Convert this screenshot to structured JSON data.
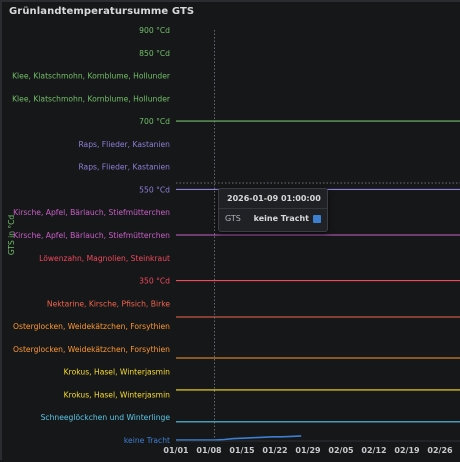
{
  "panel": {
    "title": "Grünlandtemperatursumme GTS"
  },
  "tooltip": {
    "time": "2026-01-09 01:00:00",
    "series": "GTS",
    "value": "keine Tracht",
    "swatch_color": "#3d7fd1"
  },
  "chart_data": {
    "type": "line",
    "title": "Grünlandtemperatursumme GTS",
    "ylabel": "GTS in °Cd",
    "xlabel": "",
    "x_ticks": [
      "01/01",
      "01/08",
      "01/15",
      "01/22",
      "01/29",
      "02/05",
      "02/12",
      "02/19",
      "02/26"
    ],
    "y_tick_labels": [
      {
        "label": "900 °Cd",
        "color": "#73bf69"
      },
      {
        "label": "850 °Cd",
        "color": "#73bf69"
      },
      {
        "label": "Klee, Klatschmohn, Kornblume, Hollunder",
        "color": "#73bf69"
      },
      {
        "label": "Klee, Klatschmohn, Kornblume, Hollunder",
        "color": "#73bf69"
      },
      {
        "label": "700 °Cd",
        "color": "#73bf69"
      },
      {
        "label": "Raps, Flieder, Kastanien",
        "color": "#8f7fd9"
      },
      {
        "label": "Raps, Flieder, Kastanien",
        "color": "#8f7fd9"
      },
      {
        "label": "550 °Cd",
        "color": "#8f7fd9"
      },
      {
        "label": "Kirsche, Apfel, Bärlauch, Stiefmütterchen",
        "color": "#c95fc7"
      },
      {
        "label": "Kirsche, Apfel, Bärlauch, Stiefmütterchen",
        "color": "#c95fc7"
      },
      {
        "label": "Löwenzahn, Magnolien, Steinkraut",
        "color": "#f2495c"
      },
      {
        "label": "350 °Cd",
        "color": "#f2495c"
      },
      {
        "label": "Nektarine, Kirsche, Pfisich, Birke",
        "color": "#f2644c"
      },
      {
        "label": "Osterglocken, Weidekätzchen, Forsythien",
        "color": "#ff9830"
      },
      {
        "label": "Osterglocken, Weidekätzchen, Forsythien",
        "color": "#ff9830"
      },
      {
        "label": "Krokus, Hasel, Winterjasmin",
        "color": "#fade2a"
      },
      {
        "label": "Krokus, Hasel, Winterjasmin",
        "color": "#fade2a"
      },
      {
        "label": "Schneeglöckchen und Winterlinge",
        "color": "#5ac8e8"
      },
      {
        "label": "keine Tracht",
        "color": "#3d7fd1"
      }
    ],
    "threshold_lines": [
      {
        "value": 700,
        "color": "#73bf69"
      },
      {
        "value": 550,
        "color": "#8f7fd9"
      },
      {
        "value": 450,
        "color": "#c95fc7"
      },
      {
        "value": 350,
        "color": "#f2495c"
      },
      {
        "value": 270,
        "color": "#f2644c"
      },
      {
        "value": 180,
        "color": "#ff9830"
      },
      {
        "value": 110,
        "color": "#fade2a"
      },
      {
        "value": 40,
        "color": "#5ac8e8"
      }
    ],
    "ylim": [
      0,
      900
    ],
    "xlim": [
      "2026-01-01",
      "2026-03-01"
    ],
    "crosshair_x": "2026-01-09",
    "series": [
      {
        "name": "GTS",
        "color": "#3d7fd1",
        "x": [
          "2026-01-01",
          "2026-01-04",
          "2026-01-08",
          "2026-01-09",
          "2026-01-11",
          "2026-01-13",
          "2026-01-15",
          "2026-01-17",
          "2026-01-19",
          "2026-01-21",
          "2026-01-23",
          "2026-01-25",
          "2026-01-27"
        ],
        "y": [
          0,
          0,
          0,
          0,
          1,
          3,
          4,
          5,
          6,
          7,
          7,
          8,
          9
        ]
      }
    ],
    "grid": false,
    "legend": "none"
  }
}
